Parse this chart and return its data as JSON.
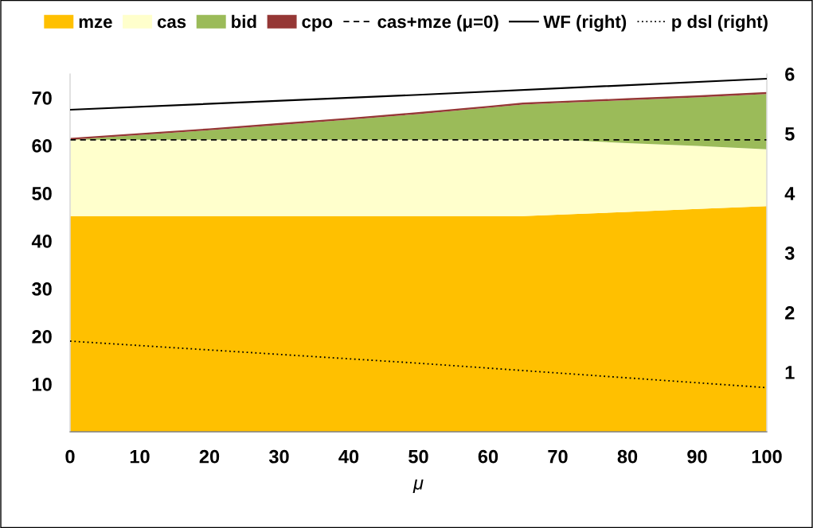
{
  "chart_data": {
    "type": "area",
    "stacked": true,
    "xlabel": "μ",
    "x": [
      0,
      10,
      20,
      30,
      40,
      50,
      60,
      65,
      70,
      80,
      90,
      100
    ],
    "series": [
      {
        "name": "mze",
        "color": "#ffc000",
        "values": [
          45.2,
          45.2,
          45.2,
          45.2,
          45.2,
          45.2,
          45.2,
          45.2,
          45.5,
          46.1,
          46.7,
          47.3
        ]
      },
      {
        "name": "cas",
        "color": "#ffffcc",
        "values": [
          16.0,
          16.0,
          16.0,
          16.0,
          16.0,
          16.0,
          16.0,
          16.0,
          15.7,
          14.4,
          13.2,
          11.9
        ]
      },
      {
        "name": "bid",
        "color": "#9bbb59",
        "values": [
          0.0,
          1.0,
          2.0,
          3.1,
          4.2,
          5.4,
          6.7,
          7.4,
          7.7,
          9.0,
          10.2,
          11.6
        ]
      },
      {
        "name": "cpo",
        "color": "#953735",
        "values": [
          0.4,
          0.4,
          0.4,
          0.4,
          0.4,
          0.4,
          0.4,
          0.4,
          0.4,
          0.4,
          0.4,
          0.4
        ]
      },
      {
        "name": "cas+mze (μ=0)",
        "type": "line",
        "color": "#000000",
        "line_style": "dashed",
        "x": [
          0,
          100
        ],
        "values": [
          61.2,
          61.2
        ]
      },
      {
        "name": "WF (right)",
        "type": "line",
        "axis": "y2",
        "color": "#000000",
        "line_style": "solid",
        "x": [
          0,
          50,
          100
        ],
        "values": [
          5.4,
          5.65,
          5.92
        ]
      },
      {
        "name": "p dsl (right)",
        "type": "line",
        "axis": "y2",
        "color": "#000000",
        "line_style": "dotted",
        "x": [
          0,
          50,
          100
        ],
        "values": [
          1.52,
          1.15,
          0.74
        ]
      }
    ],
    "xlim": [
      0,
      100
    ],
    "xticks": [
      0,
      10,
      20,
      30,
      40,
      50,
      60,
      70,
      80,
      90,
      100
    ],
    "ylim": [
      0,
      75
    ],
    "yticks": [
      10,
      20,
      30,
      40,
      50,
      60,
      70
    ],
    "y2lim": [
      0,
      6
    ],
    "y2ticks": [
      1,
      2,
      3,
      4,
      5,
      6
    ],
    "grid": false,
    "legend": "top",
    "marker": "none"
  }
}
